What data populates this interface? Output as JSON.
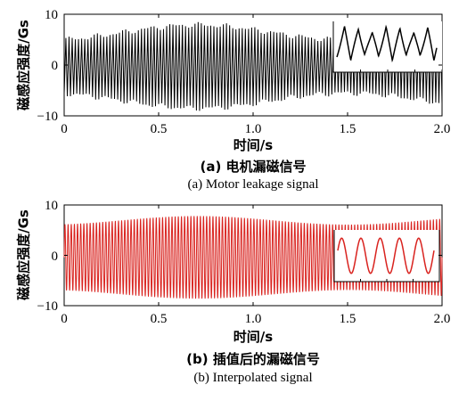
{
  "chart_data": [
    {
      "type": "line",
      "caption_cn": "(a) 电机漏磁信号",
      "caption_en": "(a)  Motor leakage signal",
      "xlabel": "时间/s",
      "ylabel": "磁感应强度/Gs",
      "xlim": [
        0,
        2.0
      ],
      "ylim": [
        -10,
        10
      ],
      "xticks": [
        "0",
        "0.5",
        "1.0",
        "1.5",
        "2.0"
      ],
      "yticks": [
        "10",
        "0",
        "−10"
      ],
      "series": [
        {
          "color": "#000000",
          "frequency_hz": 60,
          "amplitude": [
            5.2,
            8.2
          ],
          "offset": -0.3,
          "style": "sawtooth-like"
        }
      ],
      "inset": {
        "color": "#000000",
        "style": "zoomed waveform detail"
      }
    },
    {
      "type": "line",
      "caption_cn": "(b)  插值后的漏磁信号",
      "caption_en": "(b)  Interpolated signal",
      "xlabel": "时间/s",
      "ylabel": "磁感应强度/Gs",
      "xlim": [
        0,
        2.0
      ],
      "ylim": [
        -10,
        10
      ],
      "xticks": [
        "0",
        "0.5",
        "1.0",
        "1.5",
        "2.0"
      ],
      "yticks": [
        "10",
        "0",
        "−10"
      ],
      "series": [
        {
          "color": "#d9231f",
          "frequency_hz": 60,
          "amplitude": [
            6.5,
            8.2
          ],
          "offset": -0.4,
          "style": "sinusoid"
        }
      ],
      "inset": {
        "color": "#d9231f",
        "style": "zoomed sinusoid detail"
      }
    }
  ]
}
